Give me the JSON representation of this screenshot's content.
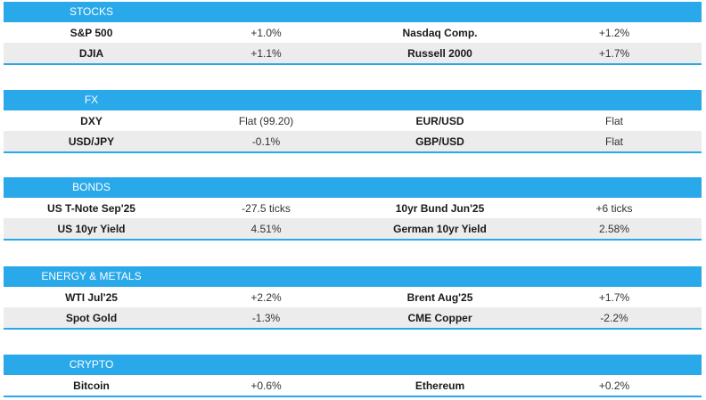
{
  "sections": [
    {
      "title": "STOCKS",
      "rows": [
        {
          "name1": "S&P 500",
          "val1": "+1.0%",
          "name2": "Nasdaq Comp.",
          "val2": "+1.2%"
        },
        {
          "name1": "DJIA",
          "val1": "+1.1%",
          "name2": "Russell 2000",
          "val2": "+1.7%"
        }
      ]
    },
    {
      "title": "FX",
      "rows": [
        {
          "name1": "DXY",
          "val1": "Flat (99.20)",
          "name2": "EUR/USD",
          "val2": "Flat"
        },
        {
          "name1": "USD/JPY",
          "val1": "-0.1%",
          "name2": "GBP/USD",
          "val2": "Flat"
        }
      ]
    },
    {
      "title": "BONDS",
      "rows": [
        {
          "name1": "US T-Note Sep'25",
          "val1": "-27.5 ticks",
          "name2": "10yr Bund Jun'25",
          "val2": "+6 ticks"
        },
        {
          "name1": "US 10yr Yield",
          "val1": "4.51%",
          "name2": "German 10yr Yield",
          "val2": "2.58%"
        }
      ]
    },
    {
      "title": "ENERGY & METALS",
      "rows": [
        {
          "name1": "WTI Jul'25",
          "val1": "+2.2%",
          "name2": "Brent Aug'25",
          "val2": "+1.7%"
        },
        {
          "name1": "Spot Gold",
          "val1": "-1.3%",
          "name2": "CME Copper",
          "val2": "-2.2%"
        }
      ]
    },
    {
      "title": "CRYPTO",
      "rows": [
        {
          "name1": "Bitcoin",
          "val1": "+0.6%",
          "name2": "Ethereum",
          "val2": "+0.2%"
        }
      ]
    }
  ],
  "colors": {
    "header": "#29a8ea",
    "alt_row": "#ececec"
  }
}
